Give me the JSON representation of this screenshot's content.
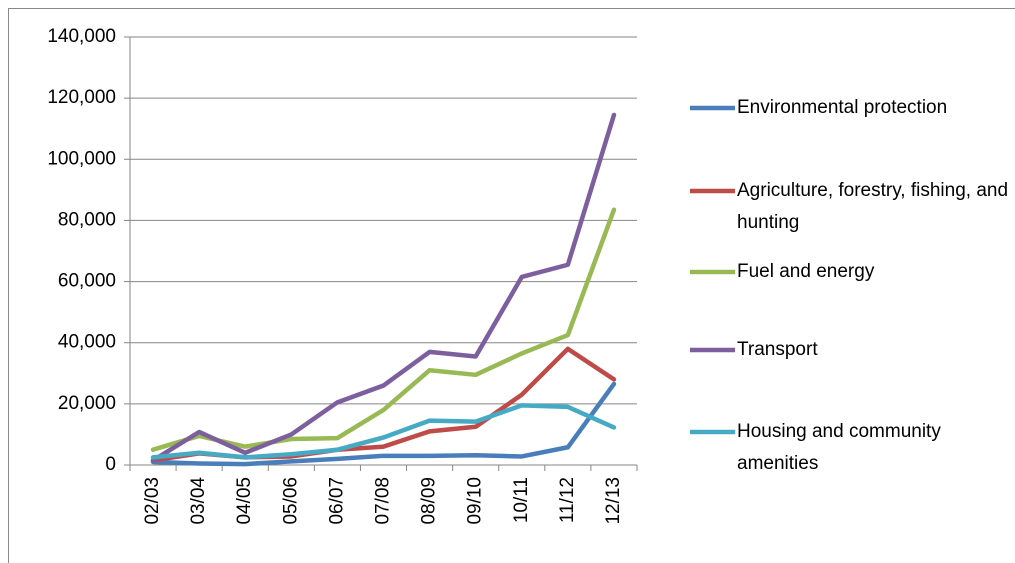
{
  "chart_data": {
    "type": "line",
    "categories": [
      "02/03",
      "03/04",
      "04/05",
      "05/06",
      "06/07",
      "07/08",
      "08/09",
      "09/10",
      "10/11",
      "11/12",
      "12/13"
    ],
    "series": [
      {
        "name": "Environmental protection",
        "color": "#4a7ebb",
        "values": [
          1000,
          500,
          300,
          1200,
          2000,
          3000,
          3000,
          3200,
          2800,
          5800,
          26500
        ]
      },
      {
        "name": "Agriculture, forestry, fishing, and hunting",
        "color": "#be4b48",
        "values": [
          1500,
          3800,
          2500,
          2800,
          5000,
          6000,
          11000,
          12500,
          23000,
          38000,
          28000
        ]
      },
      {
        "name": "Fuel and energy",
        "color": "#98b954",
        "values": [
          5000,
          9500,
          6000,
          8500,
          8800,
          18000,
          31000,
          29500,
          36500,
          42500,
          83500
        ]
      },
      {
        "name": "Transport",
        "color": "#7d5fa0",
        "values": [
          1500,
          10800,
          4000,
          10000,
          20500,
          26000,
          37000,
          35500,
          61500,
          65500,
          114500
        ]
      },
      {
        "name": "Housing and community amenities",
        "color": "#46aac5",
        "values": [
          2500,
          4000,
          2500,
          3500,
          5000,
          9000,
          14500,
          14200,
          19500,
          19000,
          12300
        ]
      }
    ],
    "ylim": [
      0,
      140000
    ],
    "yticks": [
      0,
      {
        "value": 20000,
        "label": "20,000"
      },
      {
        "value": 40000,
        "label": "40,000"
      },
      {
        "value": 60000,
        "label": "60,000"
      },
      {
        "value": 80000,
        "label": "80,000"
      },
      {
        "value": 100000,
        "label": "100,000"
      },
      {
        "value": 120000,
        "label": "120,000"
      },
      {
        "value": 140000,
        "label": "140,000"
      }
    ],
    "grid": true,
    "legend": "right"
  }
}
